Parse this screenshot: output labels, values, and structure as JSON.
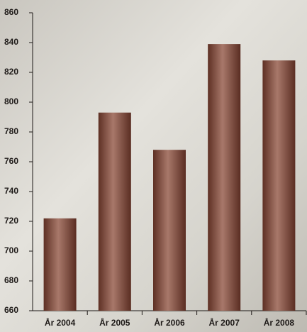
{
  "chart_data": {
    "type": "bar",
    "categories": [
      "År 2004",
      "År 2005",
      "År 2006",
      "År 2007",
      "År 2008"
    ],
    "values": [
      722,
      793,
      768,
      839,
      828
    ],
    "color": "#7a4535",
    "ylim": [
      660,
      860
    ],
    "yticks": [
      660,
      680,
      700,
      720,
      740,
      760,
      780,
      800,
      820,
      840,
      860
    ]
  }
}
